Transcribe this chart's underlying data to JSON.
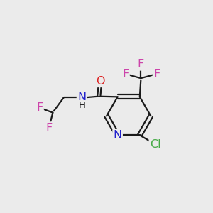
{
  "bg_color": "#ebebeb",
  "bond_color": "#1a1a1a",
  "atom_colors": {
    "F": "#cc44aa",
    "Cl": "#44aa44",
    "O": "#dd2222",
    "N": "#2222cc",
    "H": "#1a1a1a",
    "C": "#1a1a1a"
  },
  "font_size_atom": 11.5,
  "figsize": [
    3.0,
    3.0
  ],
  "dpi": 100
}
